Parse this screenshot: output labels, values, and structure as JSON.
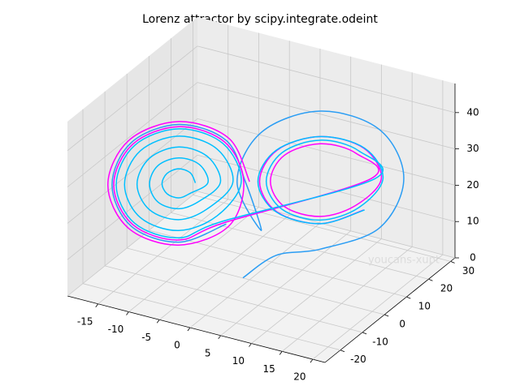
{
  "chart_data": {
    "type": "line3d",
    "title": "Lorenz attractor by scipy.integrate.odeint",
    "annotation": "youcans-xupt",
    "xlim": [
      -20,
      22
    ],
    "ylim": [
      -27,
      32
    ],
    "zlim": [
      0,
      48
    ],
    "xticks": [
      -15,
      -10,
      -5,
      0,
      5,
      10,
      15,
      20
    ],
    "yticks": [
      -20,
      -10,
      0,
      10,
      20,
      30
    ],
    "zticks": [
      0,
      10,
      20,
      30,
      40
    ],
    "grid": true,
    "series": [
      {
        "color": "#2a9df4",
        "x": [
          0,
          4,
          8.5,
          15.6,
          18.5,
          15.6,
          8.5,
          1.4,
          -1.5,
          1.4,
          -0.5,
          -2.8,
          -8.5,
          -14.2,
          -16.5,
          -14.2,
          -8.5,
          -2.8
        ],
        "y": [
          -3,
          1,
          8.5,
          15.6,
          18.5,
          15.6,
          8.5,
          1.4,
          -1.5,
          1.4,
          -0.5,
          -2.8,
          -8.5,
          -14.2,
          -16.5,
          -14.2,
          -8.5,
          -2.8
        ],
        "z": [
          2,
          8,
          8,
          13.5,
          27,
          40.5,
          46,
          40.5,
          27,
          13.5,
          27,
          38.5,
          43.2,
          38.5,
          27,
          15.5,
          10.8,
          15.5
        ]
      },
      {
        "color": "#ff00ff",
        "x": [
          0,
          -2.5,
          -8.5,
          -14.5,
          -17,
          -14.5,
          -8.5,
          -2.5,
          -0.7,
          -3,
          -8.5,
          -14,
          -16.3,
          -14,
          -8.5,
          -3,
          14.5,
          12.8,
          8.5,
          4.2,
          2.5,
          4.2,
          8.5,
          12.8,
          15.8,
          13.7,
          8.5,
          3.3,
          1.2,
          3.3,
          8.5,
          13.7
        ],
        "y": [
          0,
          -2.5,
          -8.5,
          -14.5,
          -17,
          -14.5,
          -8.5,
          -2.5,
          -0.7,
          -3,
          -8.5,
          -14,
          -16.3,
          -14,
          -8.5,
          -3,
          14.5,
          12.8,
          8.5,
          4.2,
          2.5,
          4.2,
          8.5,
          12.8,
          15.8,
          13.7,
          8.5,
          3.3,
          1.2,
          3.3,
          8.5,
          13.7
        ],
        "z": [
          27,
          39.1,
          44,
          39.1,
          27,
          14.9,
          10,
          14.9,
          27,
          38.1,
          42.6,
          38.1,
          27,
          15.9,
          11.4,
          15.9,
          27,
          34.1,
          37,
          34.1,
          27,
          19.9,
          17,
          19.9,
          27,
          35.5,
          39,
          35.5,
          27,
          18.5,
          15,
          18.5
        ]
      },
      {
        "color": "#00bfff",
        "x": [
          -6.5,
          -7.1,
          -8.5,
          -9.9,
          -10.5,
          -9.9,
          -8.5,
          -7.1,
          -5,
          -6,
          -8.5,
          -11,
          -12,
          -11,
          -8.5,
          -6,
          -3.5,
          -5,
          -8.5,
          -12,
          -13.5,
          -12,
          -8.5,
          -5,
          -2,
          -3.9,
          -8.5,
          -13.1,
          -15,
          -13.1,
          -8.5,
          -3.9,
          -1,
          -3.2,
          -8.5,
          -13.8,
          -16,
          -13.8,
          -8.5,
          -3.2,
          15,
          13.1,
          8.5,
          3.9,
          2,
          3.9,
          8.5,
          13.1,
          16,
          13.8,
          8.5,
          3.2,
          1,
          3.2,
          8.5,
          13.8
        ],
        "y": [
          -6.5,
          -7.1,
          -8.5,
          -9.9,
          -10.5,
          -9.9,
          -8.5,
          -7.1,
          -5,
          -6,
          -8.5,
          -11,
          -12,
          -11,
          -8.5,
          -6,
          -3.5,
          -5,
          -8.5,
          -12,
          -13.5,
          -12,
          -8.5,
          -5,
          -2,
          -3.9,
          -8.5,
          -13.1,
          -15,
          -13.1,
          -8.5,
          -3.9,
          -1,
          -3.2,
          -8.5,
          -13.8,
          -16,
          -13.8,
          -8.5,
          -3.2,
          15,
          13.1,
          8.5,
          3.9,
          2,
          3.9,
          8.5,
          13.1,
          16,
          13.8,
          8.5,
          3.2,
          1,
          3.2,
          8.5,
          13.8
        ],
        "z": [
          27,
          29.8,
          31,
          29.8,
          27,
          24.2,
          23,
          24.2,
          27,
          32,
          34,
          32,
          27,
          22,
          20,
          22,
          27,
          34.1,
          37,
          34.1,
          27,
          19.9,
          17,
          19.9,
          27,
          36.2,
          40,
          36.2,
          27,
          17.8,
          14,
          17.8,
          27,
          37.7,
          42,
          37.7,
          27,
          16.3,
          12,
          16.3,
          27,
          34.8,
          38,
          34.8,
          27,
          19.2,
          16,
          19.2,
          27,
          35.5,
          39,
          35.5,
          27,
          18.5,
          15,
          18.5
        ]
      }
    ]
  }
}
